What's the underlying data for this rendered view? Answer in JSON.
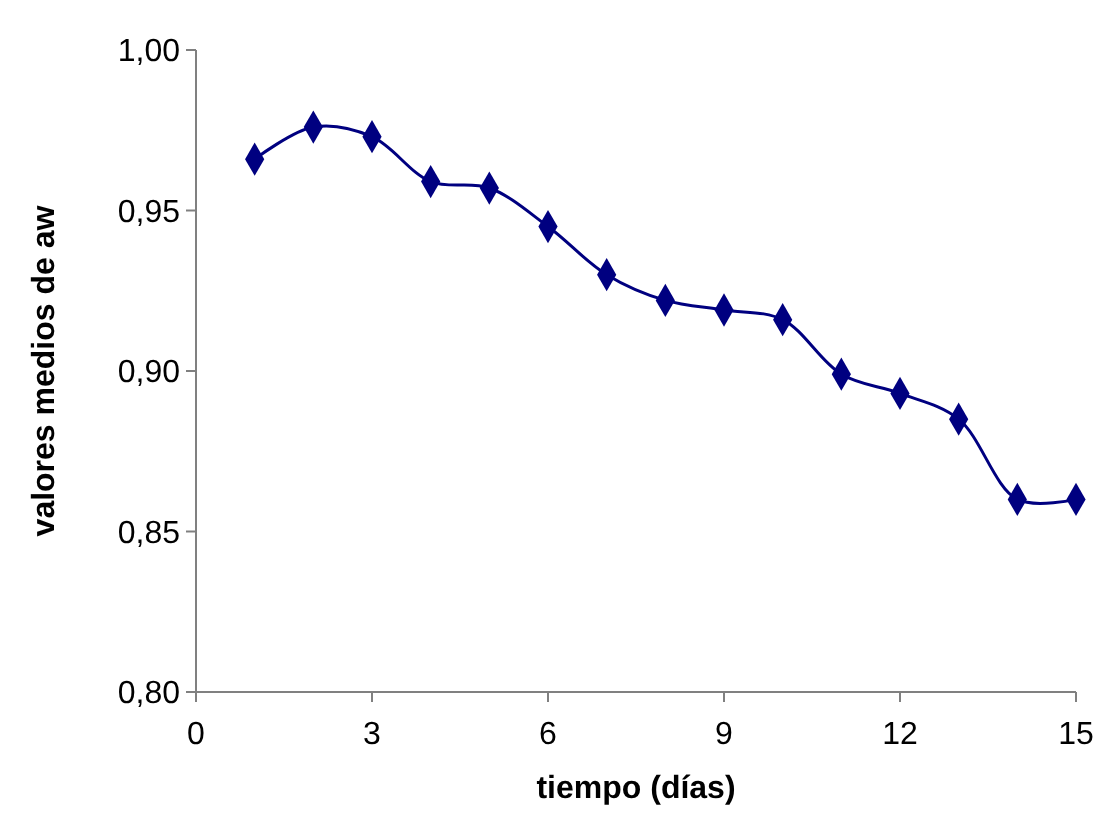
{
  "chart_data": {
    "type": "line",
    "xlabel": "tiempo (días)",
    "ylabel": "valores medios de aw",
    "x": [
      1,
      2,
      3,
      4,
      5,
      6,
      7,
      8,
      9,
      10,
      11,
      12,
      13,
      14,
      15
    ],
    "series": [
      {
        "color": "#000080",
        "values": [
          0.966,
          0.976,
          0.973,
          0.959,
          0.957,
          0.945,
          0.93,
          0.922,
          0.919,
          0.916,
          0.899,
          0.893,
          0.885,
          0.86,
          0.86
        ]
      }
    ],
    "xlim": [
      0,
      15
    ],
    "xticks": [
      0,
      3,
      6,
      9,
      12,
      15
    ],
    "ylim": [
      0.8,
      1.0
    ],
    "yticks": [
      {
        "value": 0.8,
        "label": "0,80"
      },
      {
        "value": 0.85,
        "label": "0,85"
      },
      {
        "value": 0.9,
        "label": "0,90"
      },
      {
        "value": 0.95,
        "label": "0,95"
      },
      {
        "value": 1.0,
        "label": "1,00"
      }
    ],
    "marker": "diamond",
    "line_style": "solid",
    "grid": false
  }
}
